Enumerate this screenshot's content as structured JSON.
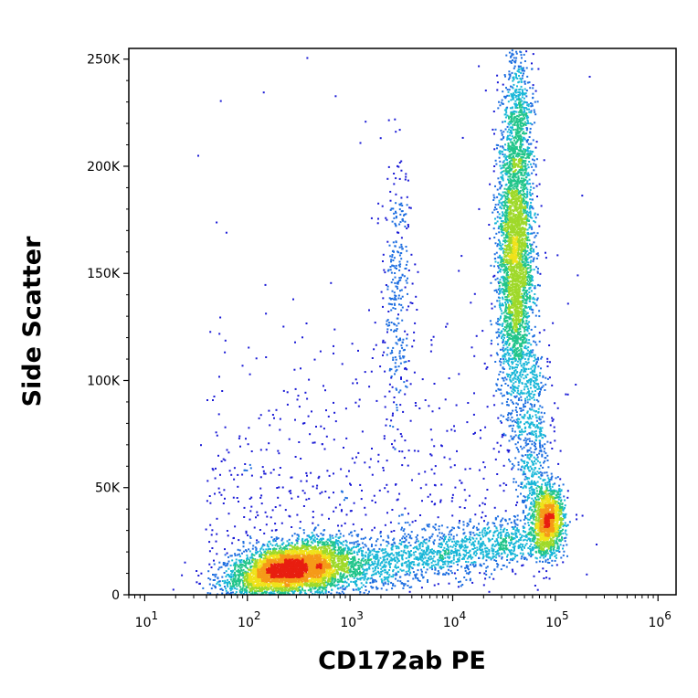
{
  "chart_data": {
    "type": "scatter",
    "title": "",
    "xlabel": "CD172ab PE",
    "ylabel": "Side Scatter",
    "x_scale": "log",
    "xlim": [
      7,
      1500000
    ],
    "ylim": [
      0,
      255000
    ],
    "y_ticks": [
      {
        "value": 0,
        "label": "0"
      },
      {
        "value": 50000,
        "label": "50K"
      },
      {
        "value": 100000,
        "label": "100K"
      },
      {
        "value": 150000,
        "label": "150K"
      },
      {
        "value": 200000,
        "label": "200K"
      },
      {
        "value": 250000,
        "label": "250K"
      }
    ],
    "x_ticks": [
      {
        "value": 10,
        "base": "10",
        "exp": "1"
      },
      {
        "value": 100,
        "base": "10",
        "exp": "2"
      },
      {
        "value": 1000,
        "base": "10",
        "exp": "3"
      },
      {
        "value": 10000,
        "base": "10",
        "exp": "4"
      },
      {
        "value": 100000,
        "base": "10",
        "exp": "5"
      },
      {
        "value": 1000000,
        "base": "10",
        "exp": "6"
      }
    ],
    "grid": false,
    "colormap": [
      "#1a1ad6",
      "#1f6fe0",
      "#19b7d8",
      "#22c58a",
      "#9fd92a",
      "#f0e21a",
      "#f59a18",
      "#e81e10"
    ],
    "populations": [
      {
        "name": "",
        "center_x": 250,
        "center_y": 12000,
        "spread_log_x": 0.32,
        "spread_y": 7000,
        "density": "highest"
      },
      {
        "name": "",
        "center_x": 40000,
        "center_y": 155000,
        "spread_log_x": 0.09,
        "spread_y": 38000,
        "density": "high"
      },
      {
        "name": "",
        "center_x": 85000,
        "center_y": 35000,
        "spread_log_x": 0.08,
        "spread_y": 9000,
        "density": "high"
      },
      {
        "name": "",
        "center_x": 2800,
        "center_y": 140000,
        "spread_log_x": 0.08,
        "spread_y": 30000,
        "density": "sparse"
      }
    ]
  }
}
